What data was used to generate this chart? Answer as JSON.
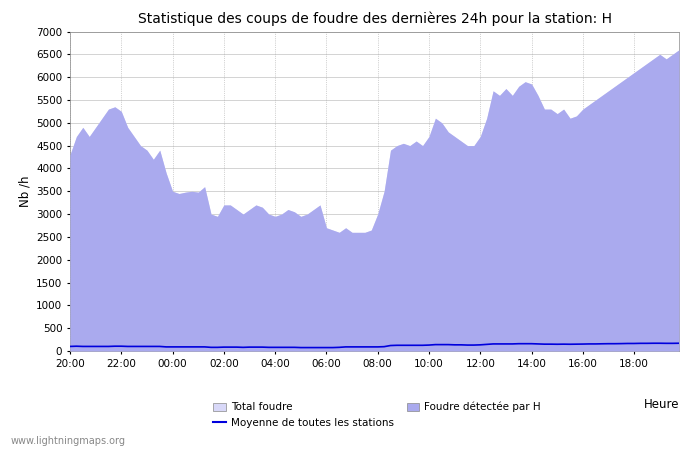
{
  "title": "Statistique des coups de foudre des dernières 24h pour la station: H",
  "xlabel": "Heure",
  "ylabel": "Nb /h",
  "ylim": [
    0,
    7000
  ],
  "yticks": [
    0,
    500,
    1000,
    1500,
    2000,
    2500,
    3000,
    3500,
    4000,
    4500,
    5000,
    5500,
    6000,
    6500,
    7000
  ],
  "xtick_labels": [
    "20:00",
    "22:00",
    "00:00",
    "02:00",
    "04:00",
    "06:00",
    "08:00",
    "10:00",
    "12:00",
    "14:00",
    "16:00",
    "18:00"
  ],
  "background_color": "#ffffff",
  "plot_bg_color": "#ffffff",
  "grid_color": "#cccccc",
  "total_foudre_color": "#d8d8f8",
  "foudre_h_color": "#aaaaee",
  "moyenne_color": "#0000dd",
  "watermark": "www.lightningmaps.org",
  "y_total": [
    4300,
    4700,
    4900,
    4700,
    4900,
    5100,
    5300,
    5350,
    5250,
    4900,
    4700,
    4500,
    4400,
    4200,
    4400,
    3900,
    3500,
    3450,
    3480,
    3500,
    3480,
    3600,
    3000,
    2950,
    3200,
    3200,
    3100,
    3000,
    3100,
    3200,
    3150,
    3000,
    2950,
    3000,
    3100,
    3050,
    2950,
    3000,
    3100,
    3200,
    2700,
    2650,
    2600,
    2700,
    2600,
    2600,
    2600,
    2650,
    3000,
    3500,
    4400,
    4500,
    4550,
    4500,
    4600,
    4500,
    4700,
    5100,
    5000,
    4800,
    4700,
    4600,
    4500,
    4500,
    4700,
    5100,
    5700,
    5600,
    5750,
    5600,
    5800,
    5900,
    5850,
    5600,
    5300,
    5300,
    5200,
    5300,
    5100,
    5150,
    5300,
    5400,
    5500,
    5600,
    5700,
    5800,
    5900,
    6000,
    6100,
    6200,
    6300,
    6400,
    6500,
    6400,
    6500,
    6600
  ],
  "y_foudre_h": [
    4300,
    4700,
    4900,
    4700,
    4900,
    5100,
    5300,
    5350,
    5250,
    4900,
    4700,
    4500,
    4400,
    4200,
    4400,
    3900,
    3500,
    3450,
    3480,
    3500,
    3480,
    3600,
    3000,
    2950,
    3200,
    3200,
    3100,
    3000,
    3100,
    3200,
    3150,
    3000,
    2950,
    3000,
    3100,
    3050,
    2950,
    3000,
    3100,
    3200,
    2700,
    2650,
    2600,
    2700,
    2600,
    2600,
    2600,
    2650,
    3000,
    3500,
    4400,
    4500,
    4550,
    4500,
    4600,
    4500,
    4700,
    5100,
    5000,
    4800,
    4700,
    4600,
    4500,
    4500,
    4700,
    5100,
    5700,
    5600,
    5750,
    5600,
    5800,
    5900,
    5850,
    5600,
    5300,
    5300,
    5200,
    5300,
    5100,
    5150,
    5300,
    5400,
    5500,
    5600,
    5700,
    5800,
    5900,
    6000,
    6100,
    6200,
    6300,
    6400,
    6500,
    6400,
    6500,
    6600
  ],
  "y_moyenne": [
    100,
    105,
    100,
    100,
    100,
    100,
    100,
    105,
    105,
    100,
    100,
    100,
    100,
    100,
    100,
    90,
    90,
    90,
    90,
    90,
    90,
    90,
    80,
    80,
    85,
    85,
    85,
    80,
    85,
    85,
    85,
    80,
    80,
    80,
    80,
    80,
    75,
    75,
    75,
    75,
    75,
    75,
    80,
    90,
    90,
    90,
    90,
    90,
    90,
    95,
    120,
    125,
    125,
    125,
    125,
    125,
    130,
    140,
    140,
    140,
    135,
    135,
    130,
    130,
    135,
    145,
    155,
    155,
    155,
    155,
    160,
    160,
    160,
    155,
    150,
    150,
    148,
    150,
    148,
    150,
    152,
    155,
    155,
    158,
    160,
    160,
    162,
    165,
    165,
    168,
    168,
    170,
    170,
    168,
    168,
    170
  ]
}
